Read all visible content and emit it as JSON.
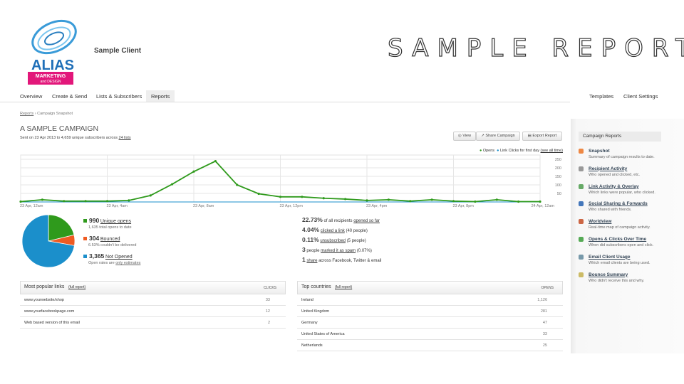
{
  "header": {
    "client": "Sample Client",
    "title": "Sample Report",
    "logo": {
      "name": "ALIAS",
      "line1": "MARKETING",
      "line2": "and DESIGN"
    }
  },
  "nav": {
    "left": [
      "Overview",
      "Create & Send",
      "Lists & Subscribers",
      "Reports"
    ],
    "right": [
      "Templates",
      "Client Settings"
    ]
  },
  "breadcrumb": [
    "Reports",
    "Campaign Snapshot"
  ],
  "campaign": {
    "title": "A SAMPLE CAMPAIGN",
    "sent": "Sent on 23 Apr 2013 to 4,659 unique subscribers across",
    "lists": "24 lists"
  },
  "buttons": [
    "View",
    "Share Campaign",
    "Export Report"
  ],
  "chart_data": [
    {
      "type": "line",
      "x": [
        0,
        1,
        2,
        3,
        4,
        5,
        6,
        7,
        8,
        9,
        10,
        11,
        12,
        13,
        14,
        15,
        16,
        17,
        18,
        19,
        20,
        21,
        22,
        23,
        24
      ],
      "series": [
        {
          "name": "Opens",
          "color": "#2f9a1c",
          "values": [
            2,
            13,
            5,
            5,
            5,
            9,
            38,
            104,
            178,
            239,
            100,
            48,
            30,
            30,
            22,
            17,
            9,
            13,
            5,
            13,
            5,
            2,
            13,
            2,
            2
          ]
        },
        {
          "name": "Link Clicks for first day",
          "color": "#1b8fcb",
          "values": [
            0,
            0,
            0,
            0,
            0,
            0,
            0,
            0,
            0,
            0,
            0,
            0,
            0,
            0,
            0,
            0,
            0,
            0,
            0,
            0,
            0,
            0,
            0,
            0,
            0
          ]
        }
      ],
      "legend_link": "(see all time)",
      "xlim": [
        0,
        24
      ],
      "xticks": [
        {
          "value": 0,
          "label": "23 Apr, 12am"
        },
        {
          "value": 4,
          "label": "23 Apr, 4am"
        },
        {
          "value": 8,
          "label": "23 Apr, 8am"
        },
        {
          "value": 12,
          "label": "23 Apr, 12pm"
        },
        {
          "value": 16,
          "label": "23 Apr, 4pm"
        },
        {
          "value": 20,
          "label": "23 Apr, 8pm"
        },
        {
          "value": 24,
          "label": "24 Apr, 12am"
        }
      ],
      "ylim": [
        0,
        275
      ],
      "yticks": [
        50,
        100,
        150,
        200,
        250
      ],
      "grid": true
    },
    {
      "type": "pie",
      "categories": [
        "Unique opens",
        "Bounced",
        "Not Opened"
      ],
      "values": [
        990,
        304,
        3365
      ],
      "value_labels": [
        "990",
        "304",
        "3,365"
      ],
      "colors": [
        "#2f9a1c",
        "#ef5b22",
        "#1b8fcb"
      ],
      "notes": [
        "1,635 total opens to date",
        "6.53% couldn't be delivered",
        "Open rates are"
      ],
      "note_link": "only estimates"
    }
  ],
  "stats": [
    {
      "value": "22.73%",
      "pre": "of all recipients",
      "link": "opened so far"
    },
    {
      "value": "4.04%",
      "link": "clicked a link",
      "post": "(40 people)"
    },
    {
      "value": "0.11%",
      "link": "unsubscribed",
      "post": "(5 people)"
    },
    {
      "value": "3",
      "pre": "people",
      "link": "marked it as spam",
      "post": "(0.07%)"
    },
    {
      "value": "1",
      "link": "share",
      "post": "across Facebook, Twitter & email"
    }
  ],
  "tables": [
    {
      "title": "Most popular links",
      "link": "(full report)",
      "column": "CLICKS",
      "rows": [
        [
          "www.yourwebsite/shop",
          "33"
        ],
        [
          "www.yourfacebookpage.com",
          "12"
        ],
        [
          "Web based version of this email",
          "2"
        ]
      ]
    },
    {
      "title": "Top countries",
      "link": "(full report)",
      "column": "OPENS",
      "rows": [
        [
          "Ireland",
          "1,126"
        ],
        [
          "United Kingdom",
          "281"
        ],
        [
          "Germany",
          "47"
        ],
        [
          "United States of America",
          "33"
        ],
        [
          "Netherlands",
          "25"
        ]
      ]
    }
  ],
  "sidebar": {
    "title": "Campaign Reports",
    "items": [
      {
        "title": "Snapshot",
        "desc": "Summary of campaign results to date."
      },
      {
        "title": "Recipient Activity",
        "desc": "Who opened and clicked, etc."
      },
      {
        "title": "Link Activity & Overlay",
        "desc": "Which links were popular, who clicked."
      },
      {
        "title": "Social Sharing & Forwards",
        "desc": "Who shared with friends."
      },
      {
        "title": "Worldview",
        "desc": "Real-time map of campaign activity."
      },
      {
        "title": "Opens & Clicks Over Time",
        "desc": "When did subscribers open and click."
      },
      {
        "title": "Email Client Usage",
        "desc": "Which email clients are being used."
      },
      {
        "title": "Bounce Summary",
        "desc": "Who didn't receive this and why."
      }
    ]
  }
}
